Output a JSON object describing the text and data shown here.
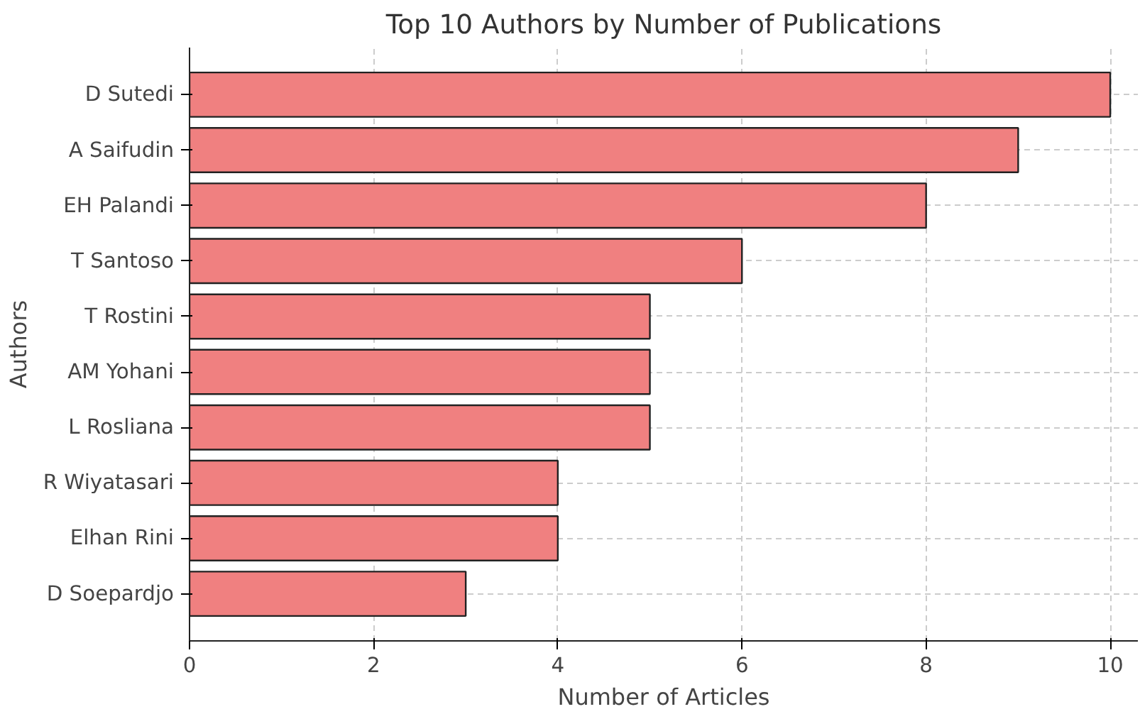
{
  "chart_data": {
    "type": "bar",
    "orientation": "horizontal",
    "title": "Top 10 Authors by Number of Publications",
    "xlabel": "Number of Articles",
    "ylabel": "Authors",
    "categories": [
      "D Sutedi",
      "A Saifudin",
      "EH Palandi",
      "T Santoso",
      "T Rostini",
      "AM Yohani",
      "L Rosliana",
      "R Wiyatasari",
      "Elhan Rini",
      "D Soepardjo"
    ],
    "values": [
      10,
      9,
      8,
      6,
      5,
      5,
      5,
      4,
      4,
      3
    ],
    "color": "#f08080",
    "xlim": [
      0,
      10.3
    ],
    "xticks": [
      0,
      2,
      4,
      6,
      8,
      10
    ],
    "grid": true
  }
}
